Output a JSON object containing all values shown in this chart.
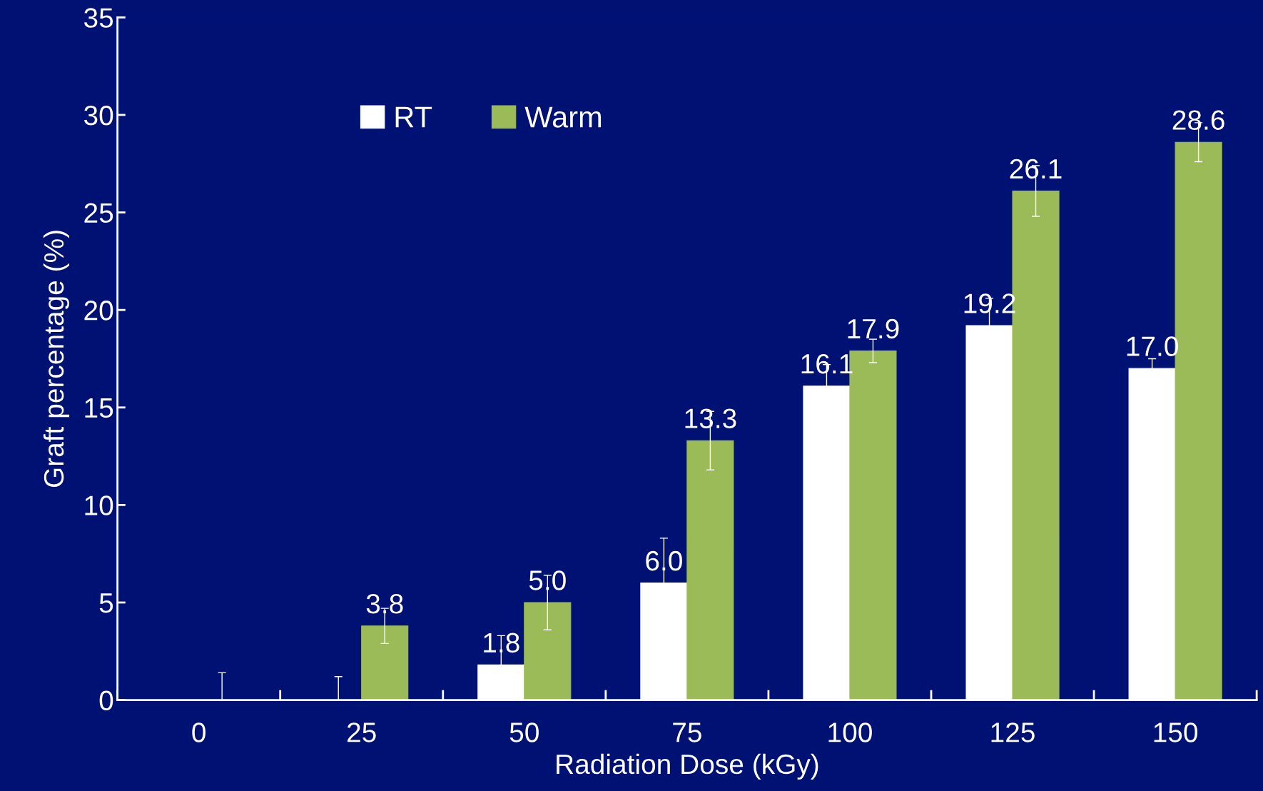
{
  "chart_data": {
    "type": "bar",
    "xlabel": "Radiation Dose (kGy)",
    "ylabel": "Graft percentage (%)",
    "categories": [
      "0",
      "25",
      "50",
      "75",
      "100",
      "125",
      "150"
    ],
    "series": [
      {
        "name": "RT",
        "color": "#ffffff",
        "values": [
          0,
          0,
          1.8,
          6.0,
          16.1,
          19.2,
          17.0
        ],
        "value_labels": [
          null,
          null,
          "1.8",
          "6.0",
          "16.1",
          "19.2",
          "17.0"
        ],
        "errors": [
          null,
          [
            0,
            1.2
          ],
          1.5,
          2.3,
          1.1,
          1.4,
          0.5
        ]
      },
      {
        "name": "Warm",
        "color": "#9bbb59",
        "values": [
          0,
          3.8,
          5.0,
          13.3,
          17.9,
          26.1,
          28.6
        ],
        "value_labels": [
          null,
          "3.8",
          "5.0",
          "13.3",
          "17.9",
          "26.1",
          "28.6"
        ],
        "errors": [
          [
            0,
            1.4
          ],
          0.9,
          1.4,
          1.5,
          0.6,
          1.3,
          1.0
        ]
      }
    ],
    "ylim": [
      0,
      35
    ],
    "yticks": [
      0,
      5,
      10,
      15,
      20,
      25,
      30,
      35
    ],
    "grid": false,
    "legend": "top left"
  }
}
